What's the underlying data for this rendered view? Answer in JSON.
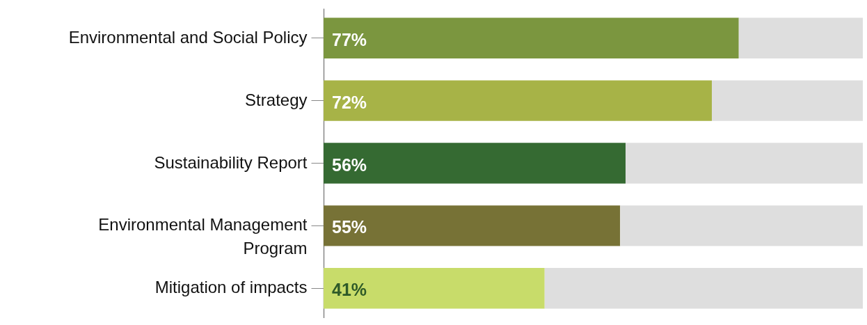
{
  "chart_data": {
    "type": "bar",
    "orientation": "horizontal",
    "stacked": true,
    "categories": [
      "Environmental and Social Policy",
      "Strategy",
      "Sustainability Report",
      "Environmental Management Program",
      "Mitigation of impacts"
    ],
    "series": [
      {
        "colors": [
          "#7b963f",
          "#a7b347",
          "#356a32",
          "#777236",
          "#c8dc6a"
        ],
        "values": [
          77,
          72,
          56,
          55,
          41
        ],
        "value_labels": [
          "77%",
          "72%",
          "56%",
          "55%",
          "41%"
        ]
      },
      {
        "color": "#dedede",
        "values": [
          23,
          28,
          44,
          45,
          59
        ]
      }
    ],
    "xlim": [
      0,
      100
    ],
    "tick_labels": "y",
    "grid": false
  }
}
